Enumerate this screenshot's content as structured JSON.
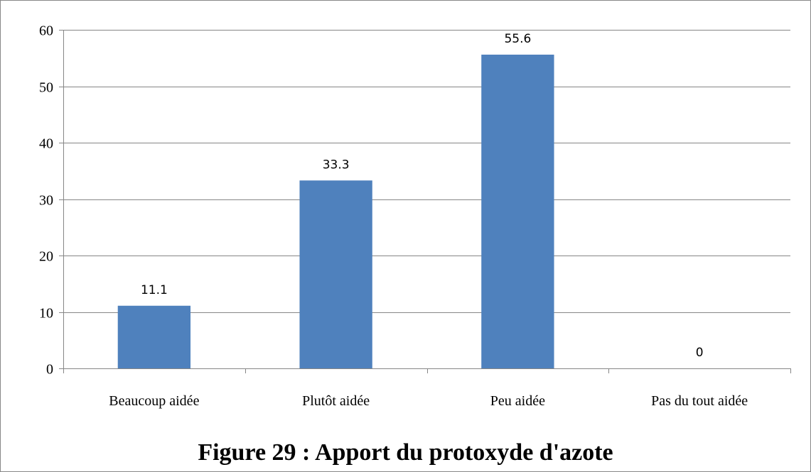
{
  "chart_data": {
    "type": "bar",
    "categories": [
      "Beaucoup aidée",
      "Plutôt aidée",
      "Peu aidée",
      "Pas du tout aidée"
    ],
    "values": [
      11.1,
      33.3,
      55.6,
      0
    ],
    "data_labels": [
      "11.1",
      "33.3",
      "55.6",
      "0"
    ],
    "title": "",
    "xlabel": "",
    "ylabel": "",
    "ylim": [
      0,
      60
    ],
    "yticks": [
      0,
      10,
      20,
      30,
      40,
      50,
      60
    ],
    "grid": true,
    "legend": "none",
    "bar_color": "#4f81bd",
    "grid_color": "#868686"
  },
  "caption": "Figure 29 : Apport du protoxyde d'azote"
}
